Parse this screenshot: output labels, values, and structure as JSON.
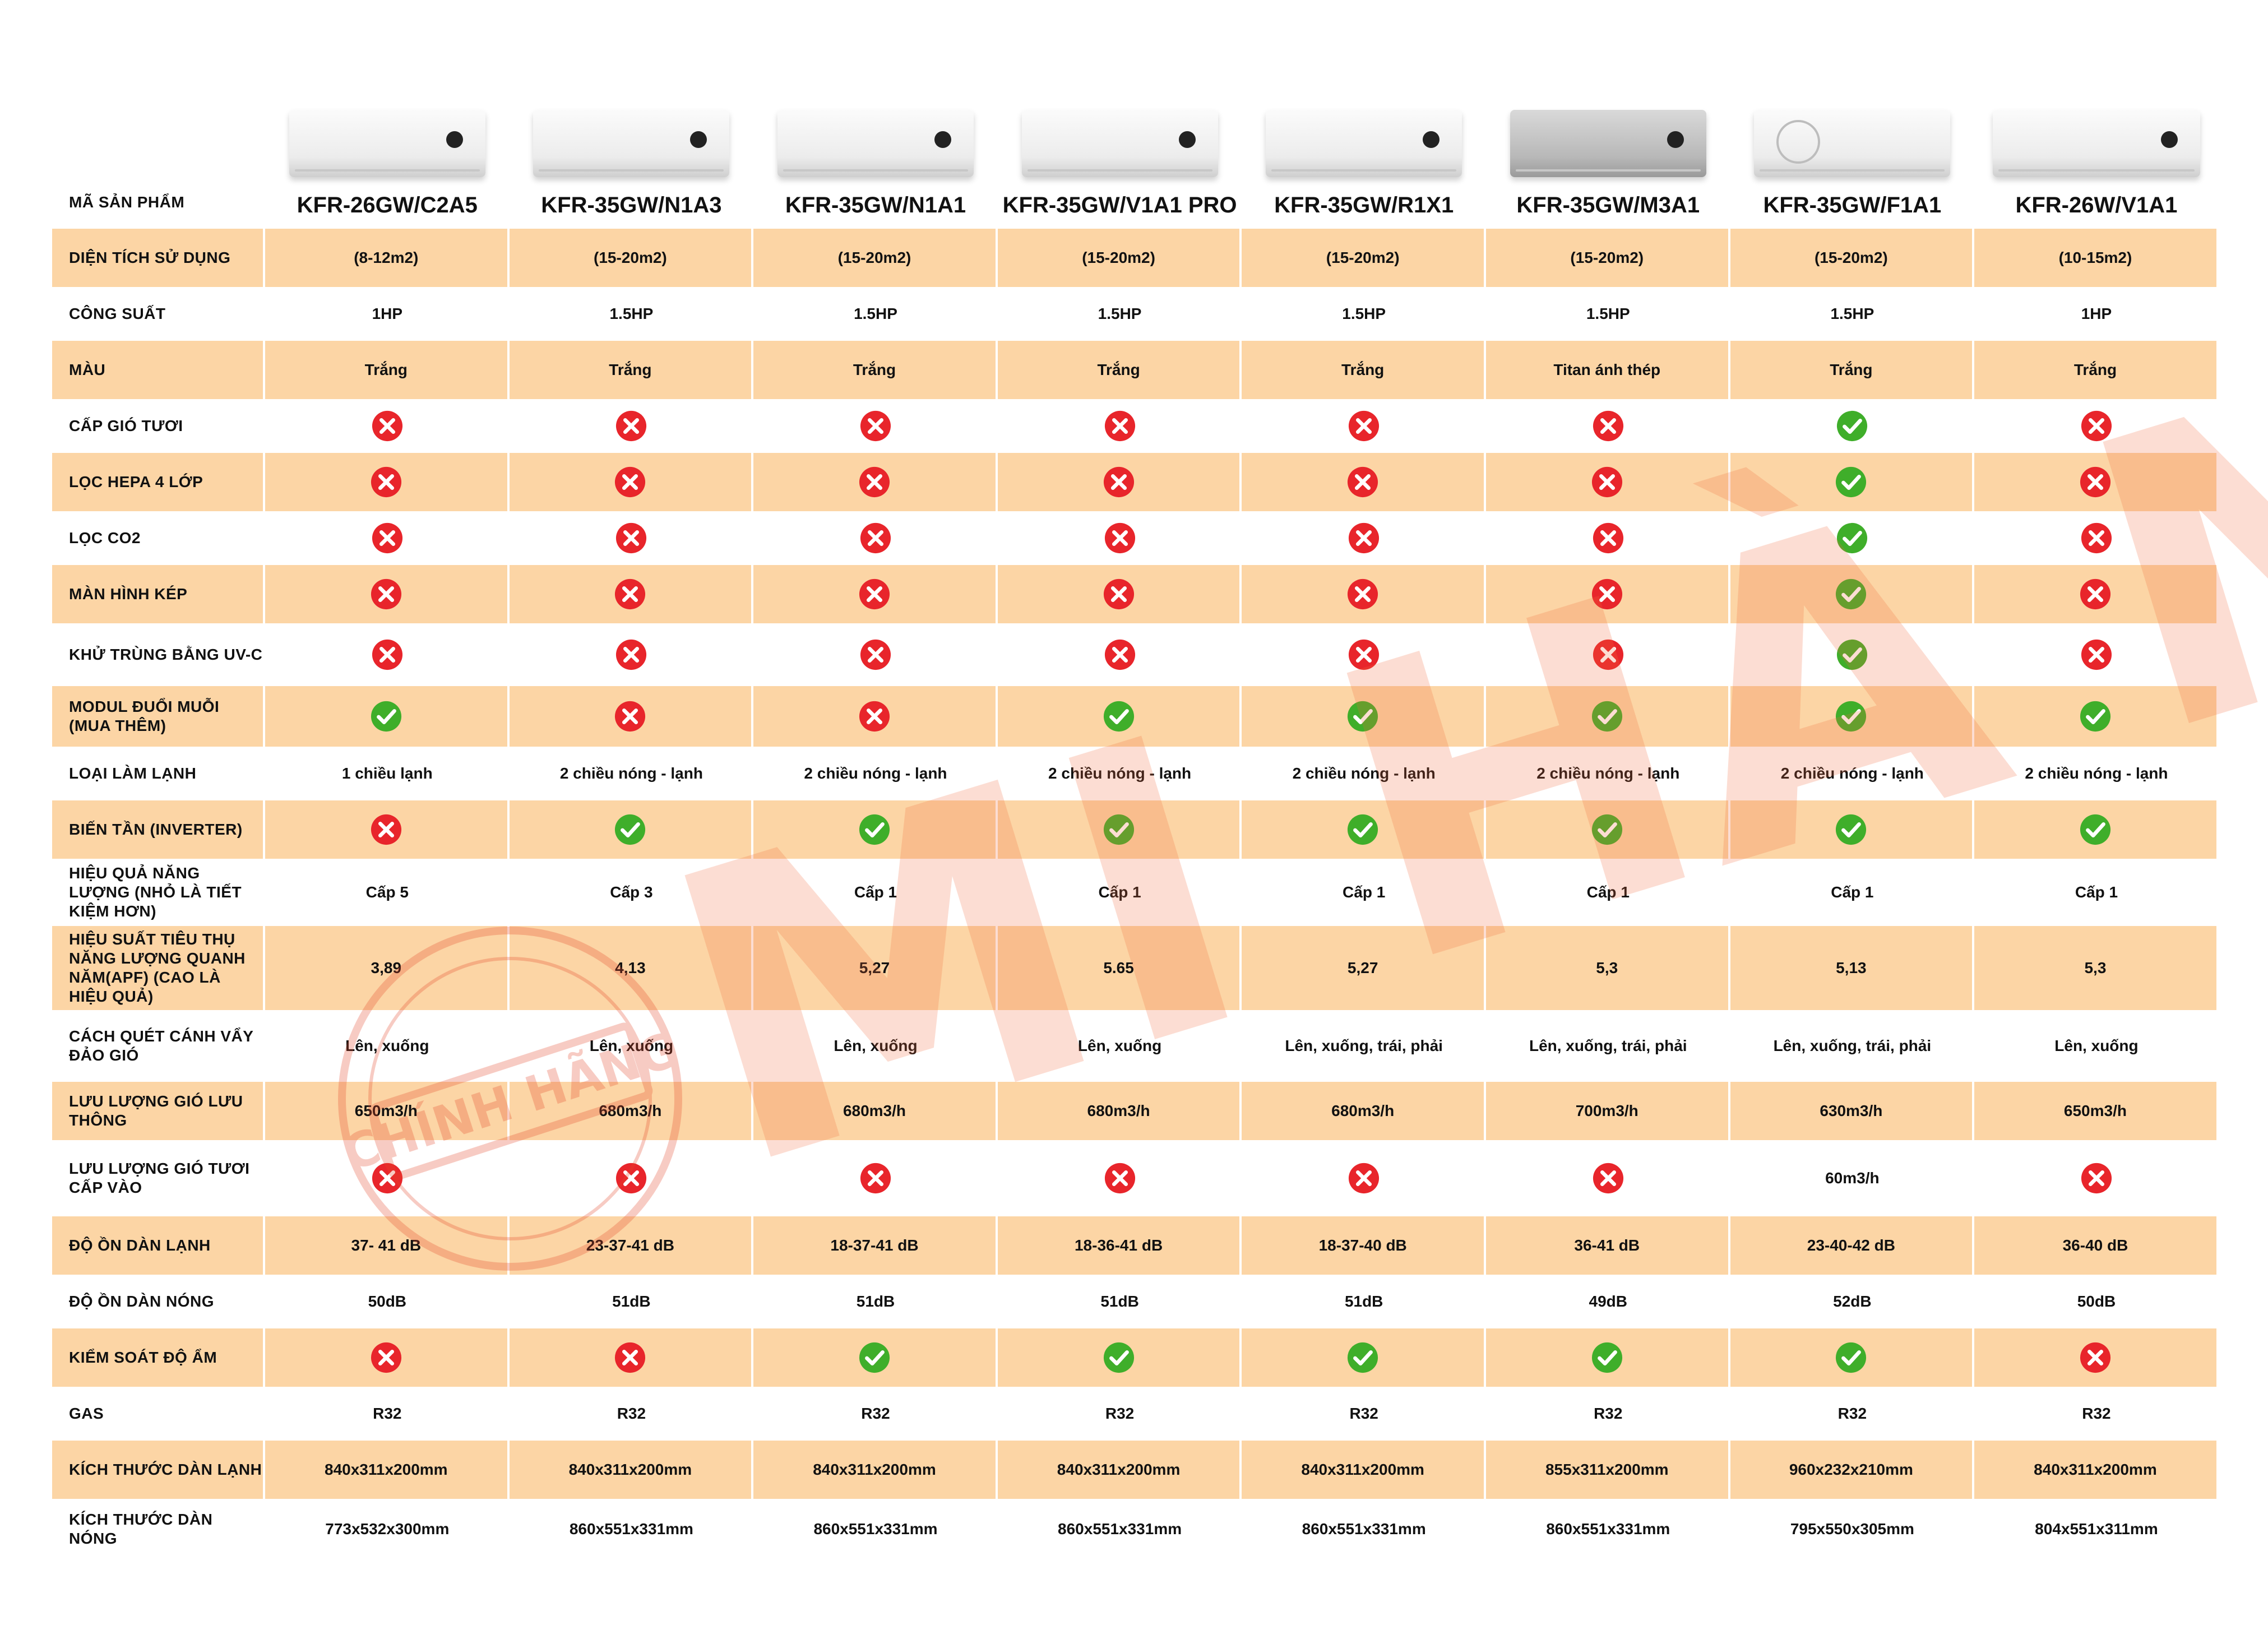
{
  "icons": {
    "yes": "check-circle-icon",
    "no": "cross-circle-icon"
  },
  "colors": {
    "band": "#fcd5a5",
    "yes": "#3fae2a",
    "no": "#e8252b",
    "watermark": "#f26a3a"
  },
  "header": {
    "label": "Mã sản phẩm",
    "models": [
      "KFR-26GW/C2A5",
      "KFR-35GW/N1A3",
      "KFR-35GW/N1A1",
      "KFR-35GW/V1A1 PRO",
      "KFR-35GW/R1X1",
      "KFR-35GW/M3A1",
      "KFR-35GW/F1A1",
      "KFR-26W/V1A1"
    ]
  },
  "rows": [
    {
      "label": "Diện tích sử dụng",
      "values": [
        "(8-12m2)",
        "(15-20m2)",
        "(15-20m2)",
        "(15-20m2)",
        "(15-20m2)",
        "(15-20m2)",
        "(15-20m2)",
        "(10-15m2)"
      ]
    },
    {
      "label": "Công suất",
      "values": [
        "1HP",
        "1.5HP",
        "1.5HP",
        "1.5HP",
        "1.5HP",
        "1.5HP",
        "1.5HP",
        "1HP"
      ]
    },
    {
      "label": "Màu",
      "values": [
        "Trắng",
        "Trắng",
        "Trắng",
        "Trắng",
        "Trắng",
        "Titan ánh thép",
        "Trắng",
        "Trắng"
      ]
    },
    {
      "label": "Cấp gió tươi",
      "values": [
        "no",
        "no",
        "no",
        "no",
        "no",
        "no",
        "yes",
        "no"
      ]
    },
    {
      "label": "Lọc HEPA 4 lớp",
      "values": [
        "no",
        "no",
        "no",
        "no",
        "no",
        "no",
        "yes",
        "no"
      ]
    },
    {
      "label": "Lọc CO2",
      "values": [
        "no",
        "no",
        "no",
        "no",
        "no",
        "no",
        "yes",
        "no"
      ]
    },
    {
      "label": "Màn hình kép",
      "values": [
        "no",
        "no",
        "no",
        "no",
        "no",
        "no",
        "yes",
        "no"
      ]
    },
    {
      "label": "Khử trùng bằng UV-C",
      "values": [
        "no",
        "no",
        "no",
        "no",
        "no",
        "no",
        "yes",
        "no"
      ]
    },
    {
      "label": "Modul đuổi muỗi (mua thêm)",
      "values": [
        "yes",
        "no",
        "no",
        "yes",
        "yes",
        "yes",
        "yes",
        "yes"
      ]
    },
    {
      "label": "Loại làm lạnh",
      "values": [
        "1 chiều lạnh",
        "2 chiều nóng - lạnh",
        "2 chiều nóng - lạnh",
        "2 chiều nóng - lạnh",
        "2 chiều nóng - lạnh",
        "2 chiều nóng - lạnh",
        "2 chiều nóng - lạnh",
        "2 chiều nóng - lạnh"
      ]
    },
    {
      "label": "Biến tần (Inverter)",
      "values": [
        "no",
        "yes",
        "yes",
        "yes",
        "yes",
        "yes",
        "yes",
        "yes"
      ]
    },
    {
      "label": "Hiệu quả năng lượng (nhỏ là tiết kiệm hơn)",
      "values": [
        "Cấp 5",
        "Cấp 3",
        "Cấp 1",
        "Cấp 1",
        "Cấp 1",
        "Cấp 1",
        "Cấp 1",
        "Cấp 1"
      ]
    },
    {
      "label": "Hiệu suất tiêu thụ năng lượng quanh năm(APF) (cao là hiệu quả)",
      "values": [
        "3,89",
        "4,13",
        "5,27",
        "5.65",
        "5,27",
        "5,3",
        "5,13",
        "5,3"
      ]
    },
    {
      "label": "Cách quét cánh vẩy đảo gió",
      "values": [
        "Lên, xuống",
        "Lên, xuống",
        "Lên, xuống",
        "Lên, xuống",
        "Lên, xuống, trái, phải",
        "Lên, xuống, trái, phải",
        "Lên, xuống, trái, phải",
        "Lên, xuống"
      ]
    },
    {
      "label": "Lưu lượng gió lưu thông",
      "values": [
        "650m3/h",
        "680m3/h",
        "680m3/h",
        "680m3/h",
        "680m3/h",
        "700m3/h",
        "630m3/h",
        "650m3/h"
      ]
    },
    {
      "label": "Lưu lượng gió tươi cấp vào",
      "values": [
        "no",
        "no",
        "no",
        "no",
        "no",
        "no",
        "60m3/h",
        "no"
      ]
    },
    {
      "label": "Độ ồn dàn lạnh",
      "values": [
        "37- 41 dB",
        "23-37-41 dB",
        "18-37-41 dB",
        "18-36-41  dB",
        "18-37-40 dB",
        "36-41 dB",
        "23-40-42 dB",
        "36-40 dB"
      ]
    },
    {
      "label": "Độ ồn dàn nóng",
      "values": [
        "50dB",
        "51dB",
        "51dB",
        "51dB",
        "51dB",
        "49dB",
        "52dB",
        "50dB"
      ]
    },
    {
      "label": "Kiểm soát độ ẩm",
      "values": [
        "no",
        "no",
        "yes",
        "yes",
        "yes",
        "yes",
        "yes",
        "no"
      ]
    },
    {
      "label": "Gas",
      "values": [
        "R32",
        "R32",
        "R32",
        "R32",
        "R32",
        "R32",
        "R32",
        "R32"
      ]
    },
    {
      "label": "Kích thước dàn lạnh",
      "values": [
        "840x311x200mm",
        "840x311x200mm",
        "840x311x200mm",
        "840x311x200mm",
        "840x311x200mm",
        "855x311x200mm",
        "960x232x210mm",
        "840x311x200mm"
      ]
    },
    {
      "label": "Kích thước dàn nóng",
      "values": [
        "773x532x300mm",
        "860x551x331mm",
        "860x551x331mm",
        "860x551x331mm",
        "860x551x331mm",
        "860x551x331mm",
        "795x550x305mm",
        "804x551x311mm"
      ]
    }
  ],
  "watermark": {
    "text": "MI HÀ NỘI",
    "seal_text": "CHÍNH HÃNG"
  }
}
